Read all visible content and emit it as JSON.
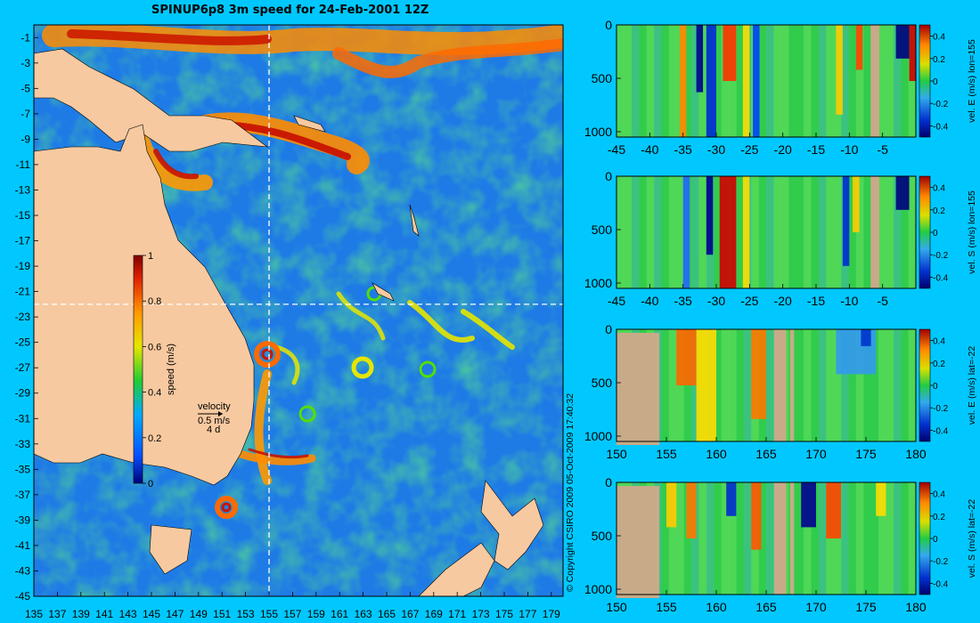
{
  "title": "SPINUP6p8 3m speed for 24-Feb-2001 12Z",
  "copyright": "© Copyright CSIRO 2009   05-Oct-2009 17:40:32",
  "colors": {
    "background": "#00c8ff",
    "land": "#f7c9a0",
    "section_land": "#c8aa88",
    "ocean_low": "#1e7be6",
    "ocean_mid": "#2ecc40",
    "ocean_high": "#ff7f00",
    "crosshair": "#ffffff"
  },
  "map": {
    "x_ticks": [
      "135",
      "137",
      "139",
      "141",
      "143",
      "145",
      "147",
      "149",
      "151",
      "153",
      "155",
      "157",
      "159",
      "161",
      "163",
      "165",
      "167",
      "169",
      "171",
      "173",
      "175",
      "177",
      "179"
    ],
    "y_ticks": [
      "-1",
      "-3",
      "-5",
      "-7",
      "-9",
      "-11",
      "-13",
      "-15",
      "-17",
      "-19",
      "-21",
      "-23",
      "-25",
      "-27",
      "-29",
      "-31",
      "-33",
      "-35",
      "-37",
      "-39",
      "-41",
      "-43",
      "-45"
    ],
    "xlim": [
      135,
      180
    ],
    "ylim": [
      -45,
      0
    ],
    "crosshair_lon": 155,
    "crosshair_lat": -22,
    "colorbar": {
      "label": "speed (m/s)",
      "ticks": [
        "0",
        "0.2",
        "0.4",
        "0.6",
        "0.8",
        "1"
      ],
      "range": [
        0,
        1
      ]
    },
    "vector_key": {
      "label": "velocity",
      "speed": "0.5 m/s",
      "duration": "4 d"
    }
  },
  "chart_data": [
    {
      "type": "heatmap",
      "name": "map",
      "title": "SPINUP6p8 3m speed for 24-Feb-2001 12Z",
      "xlim": [
        135,
        180
      ],
      "ylim": [
        -45,
        0
      ],
      "colorbar_label": "speed (m/s)",
      "colorbar_range": [
        0,
        1
      ]
    },
    {
      "type": "heatmap",
      "name": "section-e-lon155",
      "colorbar_label": "vel. E (m/s) lon=155",
      "x_ticks": [
        "-45",
        "-40",
        "-35",
        "-30",
        "-25",
        "-20",
        "-15",
        "-10",
        "-5"
      ],
      "y_ticks": [
        "0",
        "500",
        "1000"
      ],
      "xlim": [
        -45,
        0
      ],
      "ylim": [
        1050,
        0
      ],
      "colorbar_ticks": [
        "0.4",
        "0.2",
        "0",
        "-0.2",
        "-0.4"
      ],
      "colorbar_range": [
        -0.5,
        0.5
      ]
    },
    {
      "type": "heatmap",
      "name": "section-s-lon155",
      "colorbar_label": "vel. S (m/s) lon=155",
      "x_ticks": [
        "-45",
        "-40",
        "-35",
        "-30",
        "-25",
        "-20",
        "-15",
        "-10",
        "-5"
      ],
      "y_ticks": [
        "0",
        "500",
        "1000"
      ],
      "xlim": [
        -45,
        0
      ],
      "ylim": [
        1050,
        0
      ],
      "colorbar_ticks": [
        "0.4",
        "0.2",
        "0",
        "-0.2",
        "-0.4"
      ],
      "colorbar_range": [
        -0.5,
        0.5
      ]
    },
    {
      "type": "heatmap",
      "name": "section-e-lat22",
      "colorbar_label": "vel. E (m/s) lat=-22",
      "x_ticks": [
        "150",
        "155",
        "160",
        "165",
        "170",
        "175",
        "180"
      ],
      "y_ticks": [
        "0",
        "500",
        "1000"
      ],
      "xlim": [
        150,
        180
      ],
      "ylim": [
        1050,
        0
      ],
      "colorbar_ticks": [
        "0.4",
        "0.2",
        "0",
        "-0.2",
        "-0.4"
      ],
      "colorbar_range": [
        -0.5,
        0.5
      ]
    },
    {
      "type": "heatmap",
      "name": "section-s-lat22",
      "colorbar_label": "vel. S (m/s) lat=-22",
      "x_ticks": [
        "150",
        "155",
        "160",
        "165",
        "170",
        "175",
        "180"
      ],
      "y_ticks": [
        "0",
        "500",
        "1000"
      ],
      "xlim": [
        150,
        180
      ],
      "ylim": [
        1050,
        0
      ],
      "colorbar_ticks": [
        "0.4",
        "0.2",
        "0",
        "-0.2",
        "-0.4"
      ],
      "colorbar_range": [
        -0.5,
        0.5
      ]
    }
  ]
}
